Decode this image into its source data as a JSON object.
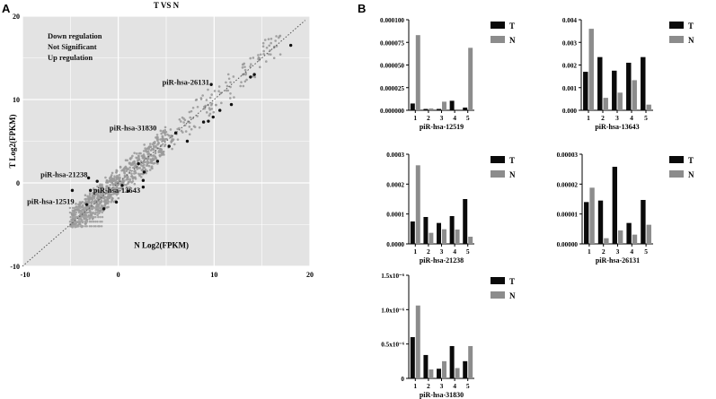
{
  "panel_labels": [
    "A",
    "B"
  ],
  "chart_data": [
    {
      "type": "scatter",
      "panel": "A",
      "title": "T VS N",
      "xlabel": "N Log2(FPKM)",
      "ylabel": "T Log2(FPKM)",
      "xlim": [
        -10,
        20
      ],
      "ylim": [
        -10,
        20
      ],
      "xticks": [
        "-10",
        "0",
        "10",
        "20"
      ],
      "yticks": [
        "-10",
        "0",
        "10",
        "20"
      ],
      "legend": [
        "Down regulation",
        "Not Significant",
        "Up regulation"
      ],
      "grid": true,
      "diagonal": "y = x (dotted)",
      "annotations": [
        {
          "text": "piR-hsa-26131",
          "x": 9.5,
          "y": 11.8
        },
        {
          "text": "piR-hsa-31830",
          "x": 4.0,
          "y": 6.3
        },
        {
          "text": "piR-hsa-21238",
          "x": -3.2,
          "y": 0.7
        },
        {
          "text": "piR-hsa-13643",
          "x": 2.3,
          "y": -1.2
        },
        {
          "text": "piR-hsa-12519",
          "x": -4.6,
          "y": -2.5
        }
      ],
      "sig_points": [
        [
          18.0,
          16.5
        ],
        [
          14.2,
          13.0
        ],
        [
          13.8,
          12.7
        ],
        [
          9.7,
          11.8
        ],
        [
          11.8,
          9.4
        ],
        [
          10.6,
          8.7
        ],
        [
          9.9,
          7.9
        ],
        [
          9.4,
          7.4
        ],
        [
          8.9,
          7.3
        ],
        [
          7.2,
          5.0
        ],
        [
          5.3,
          4.4
        ],
        [
          4.1,
          2.6
        ],
        [
          2.7,
          1.3
        ],
        [
          2.6,
          0.3
        ],
        [
          2.6,
          -0.5
        ],
        [
          0.4,
          -0.3
        ],
        [
          -2.2,
          0.2
        ],
        [
          -3.1,
          0.6
        ],
        [
          -2.9,
          -0.9
        ],
        [
          1.0,
          -1.0
        ],
        [
          -4.8,
          -0.9
        ],
        [
          -3.3,
          -2.6
        ],
        [
          -1.5,
          -3.1
        ],
        [
          -0.2,
          -2.3
        ],
        [
          2.1,
          2.3
        ],
        [
          6.0,
          6.0
        ]
      ],
      "series_colors": {
        "not_significant": "#9a9a9a",
        "significant": "#111111",
        "background": "#e3e3e3"
      }
    },
    {
      "type": "bar",
      "panel": "B",
      "title": "piR-hsa-12519",
      "categories": [
        "1",
        "2",
        "3",
        "4",
        "5"
      ],
      "series": [
        {
          "name": "T",
          "values": [
            7.5e-06,
            1.5e-06,
            1.5e-06,
            1.05e-05,
            3e-06
          ]
        },
        {
          "name": "N",
          "values": [
            8.3e-05,
            2e-06,
            9.5e-06,
            0.0,
            6.9e-05
          ]
        }
      ],
      "yticks": [
        "0.000000",
        "0.000025",
        "0.000050",
        "0.000075",
        "0.000100"
      ],
      "ylim": [
        0,
        0.0001
      ]
    },
    {
      "type": "bar",
      "panel": "B",
      "title": "piR-hsa-13643",
      "categories": [
        "1",
        "2",
        "3",
        "4",
        "5"
      ],
      "series": [
        {
          "name": "T",
          "values": [
            0.0017,
            0.00235,
            0.00175,
            0.0021,
            0.00235
          ]
        },
        {
          "name": "N",
          "values": [
            0.0036,
            0.00055,
            0.00078,
            0.00133,
            0.00025
          ]
        }
      ],
      "yticks": [
        "0.000",
        "0.001",
        "0.002",
        "0.003",
        "0.004"
      ],
      "ylim": [
        0,
        0.004
      ]
    },
    {
      "type": "bar",
      "panel": "B",
      "title": "piR-hsa-21238",
      "categories": [
        "1",
        "2",
        "3",
        "4",
        "5"
      ],
      "series": [
        {
          "name": "T",
          "values": [
            7.5e-05,
            9e-05,
            7e-05,
            9.3e-05,
            0.00015
          ]
        },
        {
          "name": "N",
          "values": [
            0.000263,
            3.7e-05,
            4.9e-05,
            4.8e-05,
            2.4e-05
          ]
        }
      ],
      "yticks": [
        "0.0000",
        "0.0001",
        "0.0002",
        "0.0003"
      ],
      "ylim": [
        0,
        0.0003
      ]
    },
    {
      "type": "bar",
      "panel": "B",
      "title": "piR-hsa-26131",
      "categories": [
        "1",
        "2",
        "3",
        "4",
        "5"
      ],
      "series": [
        {
          "name": "T",
          "values": [
            1.4e-05,
            1.45e-05,
            2.58e-05,
            7e-06,
            1.47e-05
          ]
        },
        {
          "name": "N",
          "values": [
            1.88e-05,
            1.9e-06,
            4.5e-06,
            3.1e-06,
            6.4e-06
          ]
        }
      ],
      "yticks": [
        "0.00000",
        "0.00001",
        "0.00002",
        "0.00003"
      ],
      "ylim": [
        0,
        3e-05
      ]
    },
    {
      "type": "bar",
      "panel": "B",
      "title": "piR-hsa-31830",
      "categories": [
        "1",
        "2",
        "3",
        "4",
        "5"
      ],
      "series": [
        {
          "name": "T",
          "values": [
            6e-07,
            3.4e-07,
            1.4e-07,
            4.7e-07,
            2.5e-07
          ]
        },
        {
          "name": "N",
          "values": [
            1.06e-06,
            1.3e-07,
            2.5e-07,
            1.5e-07,
            4.7e-07
          ]
        }
      ],
      "yticks": [
        "0",
        "0.5x10⁻⁶",
        "1.0x10⁻⁶",
        "1.5x10⁻⁶"
      ],
      "ylim": [
        0,
        1.5e-06
      ]
    }
  ]
}
